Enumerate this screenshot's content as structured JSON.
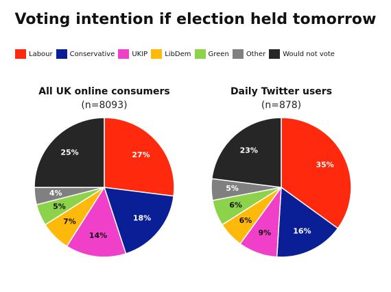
{
  "title": "Voting intention if election held tomorrow",
  "legend": [
    {
      "label": "Labour",
      "color": "#FF2A0E"
    },
    {
      "label": "Conservative",
      "color": "#0A1E96"
    },
    {
      "label": "UKIP",
      "color": "#F03FC8"
    },
    {
      "label": "LibDem",
      "color": "#FFB90A"
    },
    {
      "label": "Green",
      "color": "#8CD24B"
    },
    {
      "label": "Other",
      "color": "#808080"
    },
    {
      "label": "Would not vote",
      "color": "#262626"
    }
  ],
  "chart_data": [
    {
      "type": "pie",
      "title": "All UK online consumers",
      "subtitle": "(n=8093)",
      "slices": [
        {
          "label": "Labour",
          "value": 27,
          "text": "27%",
          "color": "#FF2A0E"
        },
        {
          "label": "Conservative",
          "value": 18,
          "text": "18%",
          "color": "#0A1E96"
        },
        {
          "label": "UKIP",
          "value": 14,
          "text": "14%",
          "color": "#F03FC8"
        },
        {
          "label": "LibDem",
          "value": 7,
          "text": "7%",
          "color": "#FFB90A"
        },
        {
          "label": "Green",
          "value": 5,
          "text": "5%",
          "color": "#8CD24B"
        },
        {
          "label": "Other",
          "value": 4,
          "text": "4%",
          "color": "#808080"
        },
        {
          "label": "Would not vote",
          "value": 25,
          "text": "25%",
          "color": "#262626"
        }
      ]
    },
    {
      "type": "pie",
      "title": "Daily Twitter users",
      "subtitle": "(n=878)",
      "slices": [
        {
          "label": "Labour",
          "value": 35,
          "text": "35%",
          "color": "#FF2A0E"
        },
        {
          "label": "Conservative",
          "value": 16,
          "text": "16%",
          "color": "#0A1E96"
        },
        {
          "label": "UKIP",
          "value": 9,
          "text": "9%",
          "color": "#F03FC8"
        },
        {
          "label": "LibDem",
          "value": 6,
          "text": "6%",
          "color": "#FFB90A"
        },
        {
          "label": "Green",
          "value": 6,
          "text": "6%",
          "color": "#8CD24B"
        },
        {
          "label": "Other",
          "value": 5,
          "text": "5%",
          "color": "#808080"
        },
        {
          "label": "Would not vote",
          "value": 23,
          "text": "23%",
          "color": "#262626"
        }
      ]
    }
  ]
}
